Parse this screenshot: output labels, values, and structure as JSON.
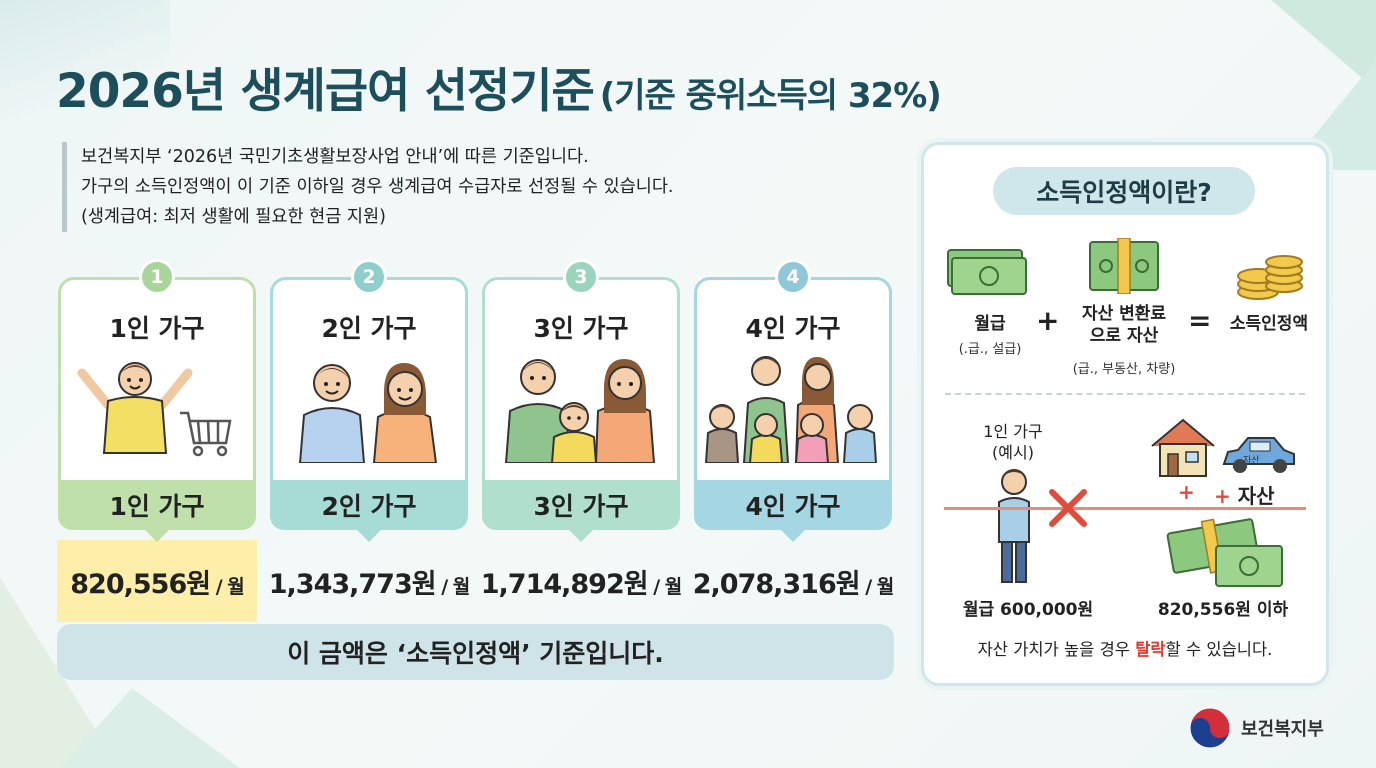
{
  "title": {
    "main": "2026년 생계급여 선정기준",
    "sub": "(기준 중위소득의 32%)"
  },
  "intro": [
    "보건복지부 ‘2026년 국민기초생활보장사업 안내’에 따른 기준입니다.",
    "가구의 소득인정액이 이 기준 이하일 경우 생계급여 수급자로 선정될 수 있습니다.",
    "(생계급여: 최저 생활에 필요한 현금 지원)"
  ],
  "households": [
    {
      "num": "1",
      "label": "1인 가구",
      "band": "1인 가구",
      "amount": "820,556원",
      "unit": " / 월",
      "color": "#a9d59a",
      "band_color": "#bfe0ab"
    },
    {
      "num": "2",
      "label": "2인 가구",
      "band": "2인 가구",
      "amount": "1,343,773원",
      "unit": " / 월",
      "color": "#8fcfcb",
      "band_color": "#a6dbd6"
    },
    {
      "num": "3",
      "label": "3인 가구",
      "band": "3인 가구",
      "amount": "1,714,892원",
      "unit": " / 월",
      "color": "#9ad4bd",
      "band_color": "#b0e0cd"
    },
    {
      "num": "4",
      "label": "4인 가구",
      "band": "4인 가구",
      "amount": "2,078,316원",
      "unit": " / 월",
      "color": "#8fc9d9",
      "band_color": "#a5d6e4"
    }
  ],
  "note": "이 금액은 ‘소득인정액’ 기준입니다.",
  "panel": {
    "title": "소득인정액이란?",
    "wage": "월급",
    "wage_sub": "(.급., 설급)",
    "plus": "+",
    "asset_line1": "자산 변환료",
    "asset_line2": "으로 자산",
    "asset_sub": "(급., 부동산, 차량)",
    "equals": "=",
    "result": "소득인정액",
    "example_line1": "1인 가구",
    "example_line2": "(예시)",
    "car_text": "자산",
    "plus_asset": "+ 자산",
    "plus_mark": "+",
    "salary": "월급 600,000원",
    "threshold": "820,556원 이하",
    "warning_pre": "자산 가치가 높을 경우 ",
    "warning_hl": "탈락",
    "warning_post": "할 수 있습니다."
  },
  "logo": "보건복지부",
  "colors": {
    "title": "#1d4e5c",
    "accent_red": "#e03a2c",
    "highlight": "#fdefa9"
  }
}
